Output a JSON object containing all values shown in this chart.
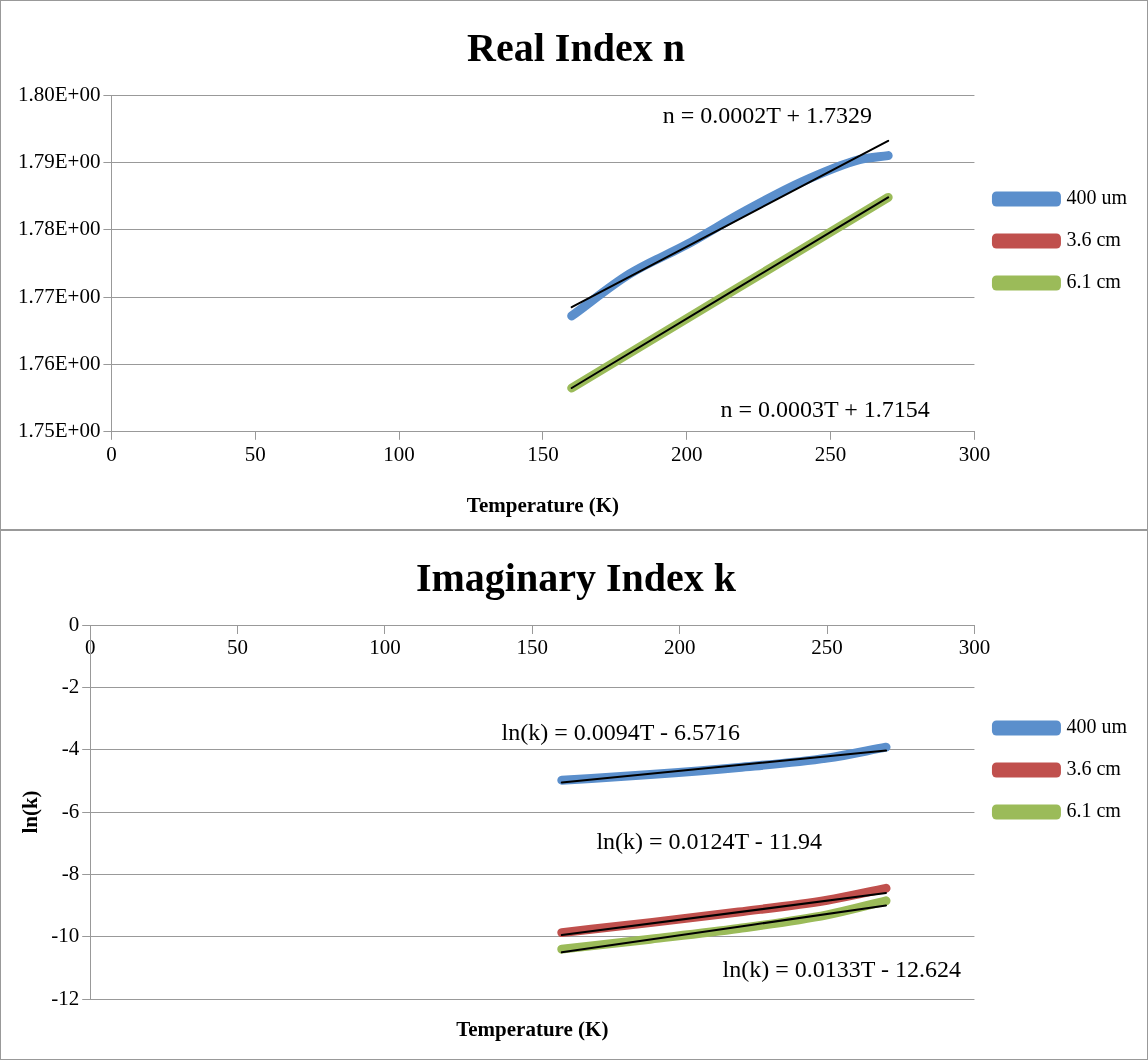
{
  "chart_data": [
    {
      "type": "line",
      "title": "Real Index n",
      "xlabel": "Temperature (K)",
      "xlim": [
        0,
        300
      ],
      "xticks": [
        0,
        50,
        100,
        150,
        200,
        250,
        300
      ],
      "ylim": [
        1.75,
        1.8
      ],
      "yticks": [
        {
          "value": 1.75,
          "label": "1.75E+00"
        },
        {
          "value": 1.76,
          "label": "1.76E+00"
        },
        {
          "value": 1.77,
          "label": "1.77E+00"
        },
        {
          "value": 1.78,
          "label": "1.78E+00"
        },
        {
          "value": 1.79,
          "label": "1.79E+00"
        },
        {
          "value": 1.8,
          "label": "1.80E+00"
        }
      ],
      "grid": "y",
      "legend": "right",
      "marker": "none",
      "line_style": "solid",
      "series": [
        {
          "name": "400 um",
          "color": "#5b8fcc",
          "x": [
            160,
            180,
            200,
            220,
            240,
            260,
            270
          ],
          "values": [
            1.7672,
            1.7734,
            1.7778,
            1.7827,
            1.7871,
            1.7904,
            1.791
          ]
        },
        {
          "name": "3.6 cm",
          "color": "#c0504d"
        },
        {
          "name": "6.1 cm",
          "color": "#9bbb59",
          "x": [
            160,
            270
          ],
          "values": [
            1.7565,
            1.7848
          ]
        },
        {
          "type": "line",
          "color": "#000000",
          "x": [
            160,
            270
          ],
          "values": [
            1.7685,
            1.7932
          ]
        },
        {
          "type": "line",
          "color": "#000000",
          "x": [
            160,
            270
          ],
          "values": [
            1.7565,
            1.7848
          ]
        }
      ],
      "annotations": [
        "n = 0.0002T + 1.7329",
        "n = 0.0003T + 1.7154"
      ]
    },
    {
      "type": "line",
      "title": "Imaginary Index k",
      "xlabel": "Temperature (K)",
      "ylabel": "ln(k)",
      "xlim": [
        0,
        300
      ],
      "xticks": [
        0,
        50,
        100,
        150,
        200,
        250,
        300
      ],
      "ylim": [
        -12,
        0
      ],
      "yticks": [
        -12,
        -10,
        -8,
        -6,
        -4,
        -2,
        0
      ],
      "grid": "y",
      "legend": "right",
      "marker": "none",
      "line_style": "solid",
      "series": [
        {
          "name": "400 um",
          "color": "#5b8fcc",
          "x": [
            160,
            190,
            220,
            250,
            270
          ],
          "values": [
            -4.98,
            -4.8,
            -4.57,
            -4.27,
            -3.92
          ]
        },
        {
          "name": "3.6 cm",
          "color": "#c0504d",
          "x": [
            160,
            190,
            220,
            250,
            270
          ],
          "values": [
            -9.87,
            -9.55,
            -9.21,
            -8.83,
            -8.45
          ]
        },
        {
          "name": "6.1 cm",
          "color": "#9bbb59",
          "x": [
            160,
            190,
            220,
            250,
            270
          ],
          "values": [
            -10.4,
            -10.08,
            -9.74,
            -9.3,
            -8.85
          ]
        },
        {
          "type": "line",
          "color": "#000000",
          "x": [
            160,
            270
          ],
          "values": [
            -5.05,
            -4.03
          ]
        },
        {
          "type": "line",
          "color": "#000000",
          "x": [
            160,
            270
          ],
          "values": [
            -9.95,
            -8.6
          ]
        },
        {
          "type": "line",
          "color": "#000000",
          "x": [
            160,
            270
          ],
          "values": [
            -10.5,
            -9.0
          ]
        }
      ],
      "annotations": [
        "ln(k) = 0.0094T - 6.5716",
        "ln(k) = 0.0124T - 11.94",
        "ln(k) = 0.0133T - 12.624"
      ]
    }
  ]
}
